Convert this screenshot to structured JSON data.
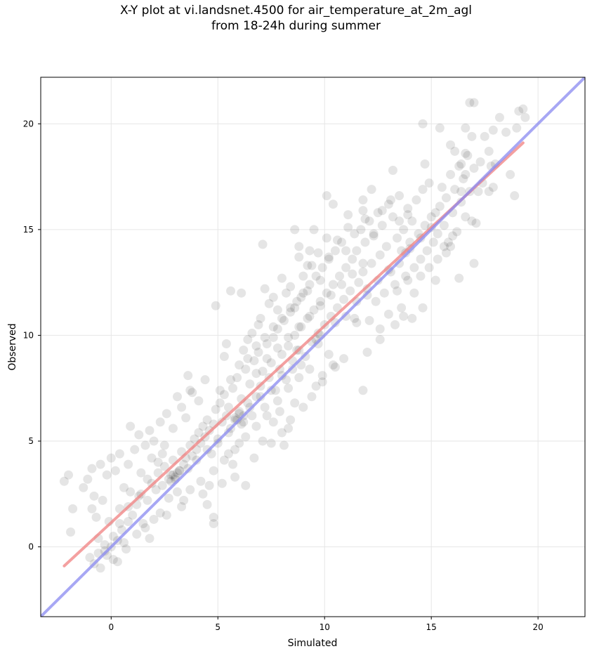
{
  "chart_data": {
    "type": "scatter",
    "title_line1": "X-Y plot at vi.landsnet.4500 for air_temperature_at_2m_agl",
    "title_line2": "from 18-24h during summer",
    "xlabel": "Simulated",
    "ylabel": "Observed",
    "xlim": [
      -3.3,
      22.2
    ],
    "ylim": [
      -3.3,
      22.2
    ],
    "xticks": [
      0,
      5,
      10,
      15,
      20
    ],
    "yticks": [
      0,
      5,
      10,
      15,
      20
    ],
    "grid": true,
    "point_color": "#000000",
    "point_opacity": 0.1,
    "series": [
      {
        "kind": "fit-line",
        "color": "#f08080",
        "points": [
          [
            -2.2,
            -0.9
          ],
          [
            19.3,
            19.1
          ]
        ]
      },
      {
        "kind": "identity-line",
        "color": "#8a8af0",
        "points": [
          [
            -3.3,
            -3.3
          ],
          [
            22.2,
            22.2
          ]
        ]
      }
    ],
    "points": [
      [
        -2.2,
        3.1
      ],
      [
        -2.0,
        3.4
      ],
      [
        -1.8,
        1.8
      ],
      [
        -1.9,
        0.7
      ],
      [
        -1.3,
        2.8
      ],
      [
        -1.1,
        3.2
      ],
      [
        -0.9,
        3.7
      ],
      [
        -0.8,
        2.4
      ],
      [
        -0.7,
        1.4
      ],
      [
        -0.5,
        3.9
      ],
      [
        -0.4,
        2.2
      ],
      [
        -0.2,
        3.4
      ],
      [
        0.0,
        4.2
      ],
      [
        0.2,
        3.6
      ],
      [
        0.4,
        4.4
      ],
      [
        0.6,
        2.8
      ],
      [
        0.8,
        3.9
      ],
      [
        0.9,
        5.7
      ],
      [
        1.1,
        4.6
      ],
      [
        1.3,
        5.3
      ],
      [
        -1.0,
        -0.5
      ],
      [
        -0.8,
        -0.8
      ],
      [
        -0.6,
        -0.3
      ],
      [
        -0.5,
        -1.0
      ],
      [
        -0.3,
        0.1
      ],
      [
        -0.2,
        -0.4
      ],
      [
        0.0,
        0.0
      ],
      [
        0.1,
        -0.6
      ],
      [
        0.3,
        0.3
      ],
      [
        0.5,
        0.8
      ],
      [
        0.6,
        0.2
      ],
      [
        0.8,
        1.2
      ],
      [
        1.0,
        1.5
      ],
      [
        1.2,
        2.0
      ],
      [
        1.4,
        2.5
      ],
      [
        1.5,
        1.1
      ],
      [
        1.7,
        2.2
      ],
      [
        1.9,
        3.0
      ],
      [
        2.1,
        2.7
      ],
      [
        2.2,
        3.5
      ],
      [
        2.4,
        2.9
      ],
      [
        2.5,
        3.8
      ],
      [
        2.7,
        3.2
      ],
      [
        2.8,
        3.4
      ],
      [
        2.9,
        4.1
      ],
      [
        3.0,
        3.3
      ],
      [
        3.1,
        2.6
      ],
      [
        3.2,
        3.6
      ],
      [
        3.3,
        4.5
      ],
      [
        3.4,
        3.9
      ],
      [
        1.6,
        4.8
      ],
      [
        1.8,
        5.5
      ],
      [
        2.0,
        5.0
      ],
      [
        2.3,
        5.9
      ],
      [
        2.6,
        6.3
      ],
      [
        2.3,
        1.6
      ],
      [
        2.0,
        1.3
      ],
      [
        1.8,
        0.4
      ],
      [
        2.7,
        2.3
      ],
      [
        3.4,
        2.2
      ],
      [
        3.5,
        4.2
      ],
      [
        3.6,
        3.7
      ],
      [
        3.7,
        4.8
      ],
      [
        3.8,
        4.3
      ],
      [
        3.9,
        5.1
      ],
      [
        4.0,
        4.6
      ],
      [
        4.1,
        5.4
      ],
      [
        4.2,
        4.9
      ],
      [
        4.3,
        5.7
      ],
      [
        4.4,
        5.2
      ],
      [
        4.5,
        6.0
      ],
      [
        4.6,
        5.5
      ],
      [
        4.7,
        4.4
      ],
      [
        4.8,
        5.8
      ],
      [
        4.9,
        6.5
      ],
      [
        5.0,
        5.1
      ],
      [
        5.1,
        6.8
      ],
      [
        5.2,
        5.9
      ],
      [
        5.3,
        7.2
      ],
      [
        5.4,
        6.2
      ],
      [
        3.1,
        7.1
      ],
      [
        3.3,
        6.6
      ],
      [
        3.6,
        8.1
      ],
      [
        3.8,
        7.3
      ],
      [
        4.1,
        6.9
      ],
      [
        4.3,
        2.5
      ],
      [
        4.5,
        2.0
      ],
      [
        4.8,
        1.4
      ],
      [
        4.8,
        1.1
      ],
      [
        4.9,
        11.4
      ],
      [
        5.5,
        6.6
      ],
      [
        5.6,
        5.6
      ],
      [
        5.7,
        7.5
      ],
      [
        5.8,
        6.0
      ],
      [
        5.9,
        8.0
      ],
      [
        6.0,
        6.4
      ],
      [
        6.1,
        7.0
      ],
      [
        6.2,
        5.9
      ],
      [
        6.3,
        8.4
      ],
      [
        6.4,
        6.8
      ],
      [
        6.5,
        7.7
      ],
      [
        6.6,
        6.2
      ],
      [
        6.7,
        8.8
      ],
      [
        6.8,
        7.1
      ],
      [
        6.9,
        9.2
      ],
      [
        7.0,
        7.6
      ],
      [
        7.1,
        8.3
      ],
      [
        7.2,
        6.6
      ],
      [
        7.3,
        9.6
      ],
      [
        7.4,
        8.0
      ],
      [
        5.5,
        4.4
      ],
      [
        5.7,
        3.9
      ],
      [
        5.8,
        3.3
      ],
      [
        6.0,
        4.9
      ],
      [
        6.3,
        2.9
      ],
      [
        5.3,
        9.0
      ],
      [
        5.4,
        9.6
      ],
      [
        5.6,
        12.1
      ],
      [
        6.1,
        12.0
      ],
      [
        7.1,
        14.3
      ],
      [
        7.5,
        8.7
      ],
      [
        7.6,
        9.9
      ],
      [
        7.7,
        7.4
      ],
      [
        7.8,
        10.3
      ],
      [
        7.9,
        8.4
      ],
      [
        8.0,
        9.1
      ],
      [
        8.1,
        10.7
      ],
      [
        8.2,
        7.9
      ],
      [
        8.3,
        9.5
      ],
      [
        8.4,
        11.1
      ],
      [
        8.5,
        8.8
      ],
      [
        8.6,
        10.0
      ],
      [
        8.7,
        11.6
      ],
      [
        8.8,
        9.3
      ],
      [
        8.9,
        10.4
      ],
      [
        9.0,
        12.0
      ],
      [
        9.1,
        9.0
      ],
      [
        9.2,
        10.8
      ],
      [
        9.3,
        12.4
      ],
      [
        9.4,
        9.7
      ],
      [
        7.6,
        5.9
      ],
      [
        7.9,
        6.4
      ],
      [
        8.1,
        4.8
      ],
      [
        8.3,
        5.6
      ],
      [
        8.6,
        6.8
      ],
      [
        8.8,
        14.2
      ],
      [
        8.6,
        15.0
      ],
      [
        9.2,
        13.3
      ],
      [
        9.5,
        15.0
      ],
      [
        9.3,
        14.0
      ],
      [
        9.5,
        11.2
      ],
      [
        9.6,
        12.8
      ],
      [
        9.7,
        10.1
      ],
      [
        9.8,
        11.6
      ],
      [
        9.9,
        13.2
      ],
      [
        10.0,
        10.5
      ],
      [
        10.1,
        12.0
      ],
      [
        10.2,
        13.6
      ],
      [
        10.3,
        10.9
      ],
      [
        10.4,
        12.4
      ],
      [
        10.5,
        14.0
      ],
      [
        10.6,
        11.3
      ],
      [
        10.7,
        12.8
      ],
      [
        10.8,
        14.4
      ],
      [
        10.9,
        11.7
      ],
      [
        11.0,
        13.2
      ],
      [
        11.1,
        15.1
      ],
      [
        11.2,
        12.1
      ],
      [
        11.3,
        13.6
      ],
      [
        11.4,
        10.8
      ],
      [
        9.6,
        7.6
      ],
      [
        9.9,
        8.1
      ],
      [
        10.2,
        9.1
      ],
      [
        10.5,
        8.5
      ],
      [
        10.1,
        16.6
      ],
      [
        10.4,
        16.2
      ],
      [
        11.1,
        15.7
      ],
      [
        11.5,
        10.6
      ],
      [
        11.8,
        7.4
      ],
      [
        12.0,
        9.2
      ],
      [
        11.5,
        14.0
      ],
      [
        11.6,
        12.5
      ],
      [
        11.7,
        15.0
      ],
      [
        11.8,
        13.0
      ],
      [
        11.9,
        14.4
      ],
      [
        12.0,
        12.2
      ],
      [
        12.1,
        15.4
      ],
      [
        12.2,
        13.4
      ],
      [
        12.3,
        14.8
      ],
      [
        12.4,
        11.6
      ],
      [
        12.5,
        15.8
      ],
      [
        12.6,
        13.8
      ],
      [
        12.7,
        15.2
      ],
      [
        12.8,
        12.0
      ],
      [
        12.9,
        14.2
      ],
      [
        13.0,
        16.2
      ],
      [
        13.1,
        13.0
      ],
      [
        13.2,
        15.6
      ],
      [
        13.3,
        12.4
      ],
      [
        13.4,
        14.6
      ],
      [
        11.8,
        16.4
      ],
      [
        11.8,
        15.9
      ],
      [
        12.2,
        16.9
      ],
      [
        13.2,
        17.8
      ],
      [
        12.1,
        10.7
      ],
      [
        12.6,
        9.8
      ],
      [
        13.3,
        10.5
      ],
      [
        13.6,
        11.3
      ],
      [
        13.9,
        12.6
      ],
      [
        13.8,
        13.9
      ],
      [
        13.5,
        16.6
      ],
      [
        13.6,
        14.0
      ],
      [
        13.7,
        15.0
      ],
      [
        13.8,
        12.8
      ],
      [
        13.9,
        16.0
      ],
      [
        14.0,
        14.4
      ],
      [
        14.1,
        15.4
      ],
      [
        14.2,
        13.2
      ],
      [
        14.3,
        16.4
      ],
      [
        14.4,
        14.8
      ],
      [
        14.5,
        13.6
      ],
      [
        14.6,
        16.9
      ],
      [
        14.7,
        15.2
      ],
      [
        14.8,
        14.0
      ],
      [
        14.9,
        17.2
      ],
      [
        15.0,
        15.6
      ],
      [
        15.1,
        14.4
      ],
      [
        15.2,
        15.8
      ],
      [
        15.3,
        14.8
      ],
      [
        15.4,
        16.1
      ],
      [
        14.6,
        20.0
      ],
      [
        14.7,
        18.1
      ],
      [
        15.4,
        19.8
      ],
      [
        15.9,
        19.0
      ],
      [
        15.2,
        12.6
      ],
      [
        14.6,
        11.3
      ],
      [
        14.1,
        10.8
      ],
      [
        15.6,
        14.2
      ],
      [
        16.0,
        14.7
      ],
      [
        16.3,
        12.7
      ],
      [
        15.5,
        17.0
      ],
      [
        15.6,
        15.2
      ],
      [
        15.7,
        16.5
      ],
      [
        15.8,
        14.4
      ],
      [
        15.9,
        17.6
      ],
      [
        16.0,
        15.8
      ],
      [
        16.1,
        16.9
      ],
      [
        16.2,
        14.9
      ],
      [
        16.3,
        18.0
      ],
      [
        16.4,
        16.3
      ],
      [
        16.5,
        17.4
      ],
      [
        16.6,
        15.6
      ],
      [
        16.7,
        18.5
      ],
      [
        16.8,
        16.8
      ],
      [
        16.9,
        15.4
      ],
      [
        17.0,
        17.9
      ],
      [
        17.1,
        15.3
      ],
      [
        17.2,
        16.8
      ],
      [
        17.3,
        18.2
      ],
      [
        17.4,
        17.2
      ],
      [
        16.6,
        19.8
      ],
      [
        16.8,
        21.0
      ],
      [
        17.0,
        21.0
      ],
      [
        16.6,
        18.6
      ],
      [
        16.9,
        19.4
      ],
      [
        17.5,
        19.4
      ],
      [
        17.7,
        18.7
      ],
      [
        17.9,
        17.0
      ],
      [
        17.7,
        16.8
      ],
      [
        18.0,
        18.1
      ],
      [
        17.9,
        19.7
      ],
      [
        18.2,
        20.3
      ],
      [
        18.5,
        19.6
      ],
      [
        18.7,
        17.6
      ],
      [
        18.9,
        16.6
      ],
      [
        19.0,
        19.8
      ],
      [
        19.1,
        20.6
      ],
      [
        19.3,
        20.7
      ],
      [
        19.4,
        20.3
      ],
      [
        17.0,
        13.4
      ],
      [
        16.4,
        16.8
      ],
      [
        16.4,
        18.1
      ],
      [
        16.1,
        18.7
      ],
      [
        16.6,
        17.6
      ],
      [
        17.8,
        18.0
      ],
      [
        3.0,
        3.2
      ],
      [
        3.1,
        3.5
      ],
      [
        2.9,
        3.4
      ],
      [
        2.8,
        3.1
      ],
      [
        3.2,
        3.6
      ],
      [
        5.9,
        6.0
      ],
      [
        6.0,
        6.3
      ],
      [
        6.1,
        5.8
      ],
      [
        6.2,
        6.2
      ],
      [
        5.8,
        6.1
      ],
      [
        9.6,
        9.8
      ],
      [
        9.8,
        10.0
      ],
      [
        9.7,
        9.6
      ],
      [
        8.7,
        9.3
      ],
      [
        8.9,
        8.6
      ],
      [
        4.0,
        4.1
      ],
      [
        4.5,
        4.6
      ],
      [
        5.0,
        4.9
      ],
      [
        5.5,
        5.4
      ],
      [
        6.5,
        6.6
      ],
      [
        7.0,
        7.1
      ],
      [
        7.5,
        7.4
      ],
      [
        8.0,
        8.1
      ],
      [
        8.5,
        8.4
      ],
      [
        10.5,
        10.6
      ],
      [
        11.0,
        10.9
      ],
      [
        11.5,
        11.6
      ],
      [
        12.0,
        11.9
      ],
      [
        12.5,
        12.6
      ],
      [
        13.0,
        13.1
      ],
      [
        13.5,
        13.4
      ],
      [
        14.0,
        14.1
      ],
      [
        14.5,
        14.6
      ],
      [
        15.0,
        15.1
      ],
      [
        6.8,
        8.2
      ],
      [
        7.3,
        8.9
      ],
      [
        7.8,
        9.4
      ],
      [
        8.3,
        9.9
      ],
      [
        8.8,
        10.4
      ],
      [
        9.3,
        10.9
      ],
      [
        9.8,
        11.4
      ],
      [
        10.3,
        11.9
      ],
      [
        10.8,
        12.4
      ],
      [
        11.3,
        12.9
      ],
      [
        11.8,
        13.4
      ],
      [
        6.4,
        9.8
      ],
      [
        6.9,
        10.5
      ],
      [
        7.2,
        12.2
      ],
      [
        7.6,
        11.8
      ],
      [
        8.0,
        12.7
      ],
      [
        8.4,
        12.3
      ],
      [
        8.8,
        13.7
      ],
      [
        9.2,
        12.1
      ],
      [
        9.7,
        13.9
      ],
      [
        10.1,
        14.6
      ],
      [
        6.7,
        4.2
      ],
      [
        7.1,
        5.0
      ],
      [
        7.5,
        4.9
      ],
      [
        8.0,
        5.4
      ],
      [
        8.4,
        6.0
      ],
      [
        9.0,
        6.6
      ],
      [
        9.4,
        7.1
      ],
      [
        9.9,
        7.8
      ],
      [
        10.4,
        8.6
      ],
      [
        10.9,
        8.9
      ],
      [
        4.4,
        7.9
      ],
      [
        3.7,
        7.4
      ],
      [
        3.5,
        6.1
      ],
      [
        2.9,
        5.6
      ],
      [
        2.4,
        4.4
      ],
      [
        1.9,
        4.2
      ],
      [
        1.4,
        3.5
      ],
      [
        0.9,
        2.6
      ],
      [
        0.4,
        1.8
      ],
      [
        -0.1,
        1.2
      ],
      [
        5.2,
        3.0
      ],
      [
        4.6,
        2.9
      ],
      [
        4.2,
        3.1
      ],
      [
        3.7,
        2.7
      ],
      [
        3.3,
        1.9
      ],
      [
        2.6,
        1.5
      ],
      [
        1.2,
        0.6
      ],
      [
        0.7,
        -0.1
      ],
      [
        0.3,
        -0.7
      ],
      [
        1.6,
        0.9
      ],
      [
        6.2,
        9.3
      ],
      [
        6.6,
        10.1
      ],
      [
        7.0,
        10.8
      ],
      [
        7.4,
        11.5
      ],
      [
        7.8,
        11.2
      ],
      [
        8.2,
        12.0
      ],
      [
        8.6,
        11.3
      ],
      [
        9.0,
        12.8
      ],
      [
        9.4,
        13.3
      ],
      [
        9.8,
        12.6
      ],
      [
        10.2,
        13.7
      ],
      [
        10.6,
        14.5
      ],
      [
        11.0,
        14.0
      ],
      [
        11.4,
        14.8
      ],
      [
        11.9,
        15.5
      ],
      [
        12.3,
        14.7
      ],
      [
        12.7,
        15.9
      ],
      [
        13.1,
        16.4
      ],
      [
        13.5,
        15.4
      ],
      [
        13.9,
        15.7
      ],
      [
        12.6,
        10.3
      ],
      [
        13.0,
        11.0
      ],
      [
        13.4,
        12.1
      ],
      [
        13.7,
        10.9
      ],
      [
        14.2,
        12.0
      ],
      [
        14.5,
        12.8
      ],
      [
        14.9,
        13.2
      ],
      [
        15.3,
        13.6
      ],
      [
        15.7,
        13.9
      ],
      [
        15.9,
        14.2
      ],
      [
        5.1,
        7.4
      ],
      [
        5.6,
        7.9
      ],
      [
        6.0,
        8.6
      ],
      [
        6.4,
        8.9
      ],
      [
        6.8,
        9.5
      ],
      [
        7.2,
        9.9
      ],
      [
        7.6,
        10.4
      ],
      [
        8.0,
        10.8
      ],
      [
        8.4,
        11.3
      ],
      [
        8.9,
        11.8
      ],
      [
        4.8,
        3.6
      ],
      [
        5.3,
        4.1
      ],
      [
        5.8,
        4.6
      ],
      [
        6.3,
        5.2
      ],
      [
        6.8,
        5.7
      ],
      [
        7.3,
        6.2
      ],
      [
        7.8,
        6.9
      ],
      [
        8.3,
        7.5
      ],
      [
        8.8,
        8.0
      ],
      [
        9.3,
        8.4
      ],
      [
        2.5,
        4.8
      ],
      [
        2.2,
        4.0
      ],
      [
        1.7,
        3.2
      ],
      [
        1.3,
        2.4
      ],
      [
        0.8,
        1.9
      ],
      [
        0.4,
        1.1
      ],
      [
        0.1,
        0.5
      ],
      [
        -0.3,
        -0.2
      ],
      [
        -0.6,
        0.4
      ],
      [
        -0.9,
        1.8
      ]
    ]
  }
}
